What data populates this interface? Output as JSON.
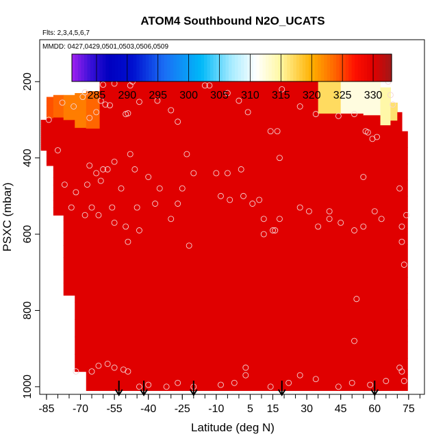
{
  "chart_data": {
    "type": "heatmap",
    "title": "ATOM4 Southbound N2O_UCATS",
    "subtitle_flights": "Flts: 2,3,4,5,6,7",
    "subtitle_dates": "MMDD: 0427,0429,0501,0503,0506,0509",
    "xlabel": "Latitude (deg N)",
    "ylabel": "PSXC (mbar)",
    "xlim": [
      -88,
      82
    ],
    "ylim": [
      1020,
      90
    ],
    "y_reversed": true,
    "x_ticks": [
      -85,
      -70,
      -55,
      -40,
      -25,
      -10,
      5,
      15,
      30,
      45,
      60,
      75
    ],
    "x_tick_labels": [
      "-85",
      "-70",
      "-55",
      "-40",
      "-25",
      "-10",
      "5",
      "15",
      "30",
      "45",
      "60",
      "75"
    ],
    "y_ticks": [
      200,
      400,
      600,
      800,
      1000
    ],
    "y_tick_labels": [
      "200",
      "400",
      "600",
      "800",
      "1000"
    ],
    "colorbar": {
      "min": 281,
      "max": 333,
      "ticks": [
        285,
        290,
        295,
        300,
        305,
        310,
        315,
        320,
        325,
        330
      ],
      "tick_labels": [
        "285",
        "290",
        "295",
        "300",
        "305",
        "310",
        "315",
        "320",
        "325",
        "330"
      ],
      "stops": [
        {
          "v": 281,
          "c": "#a020f0"
        },
        {
          "v": 284,
          "c": "#3a10d8"
        },
        {
          "v": 287,
          "c": "#0000c0"
        },
        {
          "v": 291,
          "c": "#0010d0"
        },
        {
          "v": 296,
          "c": "#1a6ef5"
        },
        {
          "v": 302,
          "c": "#00b8f8"
        },
        {
          "v": 307,
          "c": "#a8ecff"
        },
        {
          "v": 311,
          "c": "#ffffff"
        },
        {
          "v": 315,
          "c": "#fff7a0"
        },
        {
          "v": 320,
          "c": "#ffb000"
        },
        {
          "v": 324,
          "c": "#ff6000"
        },
        {
          "v": 327,
          "c": "#ff1000"
        },
        {
          "v": 330,
          "c": "#e00000"
        },
        {
          "v": 333,
          "c": "#a01818"
        }
      ]
    },
    "grid": false,
    "arrows_lat": [
      -53,
      -42,
      -20,
      19,
      60
    ],
    "field_columns": [
      {
        "lat": -86,
        "ptop": 300,
        "pbot": 380
      },
      {
        "lat": -84,
        "ptop": 240,
        "pbot": 420
      },
      {
        "lat": -80,
        "ptop": 235,
        "pbot": 550
      },
      {
        "lat": -75,
        "ptop": 235,
        "pbot": 760
      },
      {
        "lat": -70,
        "ptop": 230,
        "pbot": 960
      },
      {
        "lat": -65,
        "ptop": 225,
        "pbot": 1010
      },
      {
        "lat": -58,
        "ptop": 180,
        "pbot": 1010
      },
      {
        "lat": -50,
        "ptop": 180,
        "pbot": 1010
      },
      {
        "lat": -40,
        "ptop": 180,
        "pbot": 1010
      },
      {
        "lat": -30,
        "ptop": 180,
        "pbot": 1010
      },
      {
        "lat": -20,
        "ptop": 180,
        "pbot": 1010
      },
      {
        "lat": -10,
        "ptop": 180,
        "pbot": 1010
      },
      {
        "lat": 0,
        "ptop": 180,
        "pbot": 1010
      },
      {
        "lat": 10,
        "ptop": 180,
        "pbot": 1010
      },
      {
        "lat": 20,
        "ptop": 180,
        "pbot": 1010
      },
      {
        "lat": 30,
        "ptop": 180,
        "pbot": 1010
      },
      {
        "lat": 40,
        "ptop": 180,
        "pbot": 1010
      },
      {
        "lat": 50,
        "ptop": 180,
        "pbot": 1010
      },
      {
        "lat": 60,
        "ptop": 185,
        "pbot": 1010
      },
      {
        "lat": 65,
        "ptop": 215,
        "pbot": 1010
      },
      {
        "lat": 69,
        "ptop": 255,
        "pbot": 1010
      },
      {
        "lat": 71,
        "ptop": 280,
        "pbot": 1010
      },
      {
        "lat": 73,
        "ptop": 330,
        "pbot": 1010
      }
    ],
    "field_features": [
      {
        "name": "background",
        "value": 330
      },
      {
        "name": "upper-south-low",
        "lat": [
          -85,
          -60
        ],
        "p": [
          230,
          300
        ],
        "value": 322
      },
      {
        "name": "upper-north-low",
        "lat": [
          40,
          70
        ],
        "p": [
          180,
          300
        ],
        "value": 310
      }
    ],
    "points": [
      [
        -69,
        240
      ],
      [
        -68,
        228
      ],
      [
        -60,
        208
      ],
      [
        -55,
        205
      ],
      [
        -48,
        210
      ],
      [
        -47,
        200
      ],
      [
        -61,
        250
      ],
      [
        -59,
        260
      ],
      [
        -57,
        262
      ],
      [
        -50,
        285
      ],
      [
        -49,
        283
      ],
      [
        -44,
        253
      ],
      [
        -36,
        250
      ],
      [
        -30,
        275
      ],
      [
        -27,
        305
      ],
      [
        -15,
        210
      ],
      [
        -13,
        210
      ],
      [
        -5,
        230
      ],
      [
        0,
        250
      ],
      [
        4,
        280
      ],
      [
        19,
        220
      ],
      [
        27,
        265
      ],
      [
        34,
        285
      ],
      [
        44,
        290
      ],
      [
        51,
        285
      ],
      [
        56,
        330
      ],
      [
        57,
        333
      ],
      [
        61,
        345
      ],
      [
        66,
        200
      ],
      [
        67,
        235
      ],
      [
        68,
        260
      ],
      [
        -78,
        255
      ],
      [
        -73,
        265
      ],
      [
        -66,
        295
      ],
      [
        -63,
        280
      ],
      [
        -84,
        300
      ],
      [
        -80,
        380
      ],
      [
        -66,
        420
      ],
      [
        -60,
        430
      ],
      [
        -55,
        410
      ],
      [
        -48,
        390
      ],
      [
        -46,
        430
      ],
      [
        -40,
        450
      ],
      [
        -35,
        480
      ],
      [
        -23,
        390
      ],
      [
        -10,
        440
      ],
      [
        -5,
        440
      ],
      [
        1,
        430
      ],
      [
        14,
        330
      ],
      [
        17,
        330
      ],
      [
        18,
        400
      ],
      [
        55,
        450
      ],
      [
        59,
        350
      ],
      [
        60,
        540
      ],
      [
        71,
        480
      ],
      [
        -77,
        470
      ],
      [
        -72,
        490
      ],
      [
        -67,
        470
      ],
      [
        -63,
        440
      ],
      [
        -65,
        530
      ],
      [
        -61,
        460
      ],
      [
        -58,
        430
      ],
      [
        -52,
        480
      ],
      [
        -56,
        530
      ],
      [
        -50,
        580
      ],
      [
        -45,
        530
      ],
      [
        -37,
        520
      ],
      [
        -30,
        560
      ],
      [
        -27,
        520
      ],
      [
        -25,
        480
      ],
      [
        -20,
        440
      ],
      [
        -8,
        500
      ],
      [
        -4,
        510
      ],
      [
        2,
        500
      ],
      [
        6,
        520
      ],
      [
        9,
        510
      ],
      [
        11,
        560
      ],
      [
        15,
        590
      ],
      [
        18,
        560
      ],
      [
        27,
        530
      ],
      [
        31,
        540
      ],
      [
        35,
        580
      ],
      [
        40,
        560
      ],
      [
        45,
        570
      ],
      [
        51,
        590
      ],
      [
        55,
        580
      ],
      [
        63,
        560
      ],
      [
        72,
        580
      ],
      [
        74,
        550
      ],
      [
        -74,
        530
      ],
      [
        -68,
        550
      ],
      [
        -62,
        550
      ],
      [
        -55,
        570
      ],
      [
        -49,
        620
      ],
      [
        -44,
        590
      ],
      [
        -22,
        630
      ],
      [
        11,
        600
      ],
      [
        16,
        590
      ],
      [
        40,
        540
      ],
      [
        72,
        620
      ],
      [
        73,
        680
      ],
      [
        52,
        770
      ],
      [
        51,
        880
      ],
      [
        -72,
        960
      ],
      [
        -65,
        960
      ],
      [
        -62,
        945
      ],
      [
        -58,
        940
      ],
      [
        -55,
        950
      ],
      [
        -51,
        955
      ],
      [
        -49,
        960
      ],
      [
        -44,
        1000
      ],
      [
        -40,
        995
      ],
      [
        -32,
        1000
      ],
      [
        -27,
        990
      ],
      [
        -20,
        1000
      ],
      [
        -8,
        995
      ],
      [
        -2,
        990
      ],
      [
        3,
        950
      ],
      [
        3,
        970
      ],
      [
        14,
        1000
      ],
      [
        22,
        990
      ],
      [
        27,
        970
      ],
      [
        34,
        980
      ],
      [
        44,
        1000
      ],
      [
        50,
        990
      ],
      [
        58,
        995
      ],
      [
        65,
        985
      ],
      [
        71,
        950
      ],
      [
        72,
        960
      ],
      [
        73,
        985
      ]
    ]
  }
}
